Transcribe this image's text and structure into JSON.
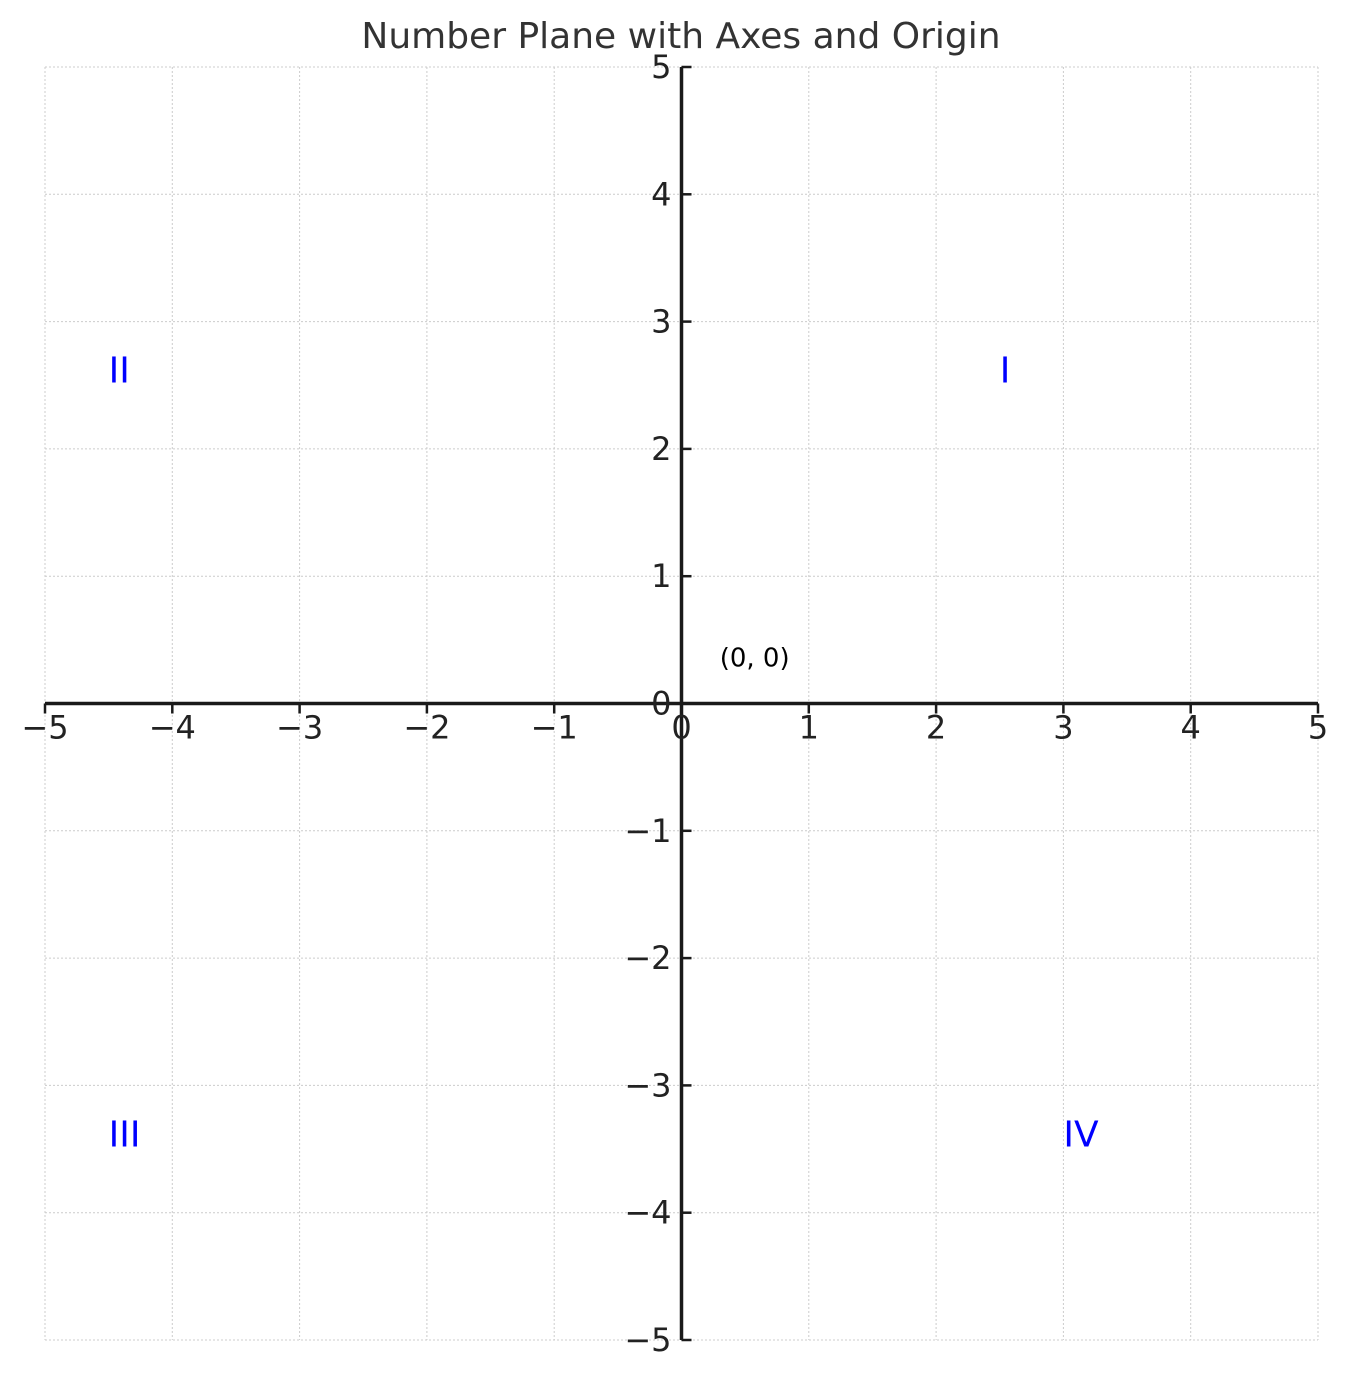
{
  "chart_data": {
    "type": "plane",
    "title": "Number Plane with Axes and Origin",
    "xlim": [
      -5,
      5
    ],
    "ylim": [
      -5,
      5
    ],
    "xticks": [
      {
        "value": -5,
        "label": "−5"
      },
      {
        "value": -4,
        "label": "−4"
      },
      {
        "value": -3,
        "label": "−3"
      },
      {
        "value": -2,
        "label": "−2"
      },
      {
        "value": -1,
        "label": "−1"
      },
      0,
      1,
      2,
      3,
      4,
      5
    ],
    "yticks": [
      {
        "value": -5,
        "label": "−5"
      },
      {
        "value": -4,
        "label": "−4"
      },
      {
        "value": -3,
        "label": "−3"
      },
      {
        "value": -2,
        "label": "−2"
      },
      {
        "value": -1,
        "label": "−1"
      },
      0,
      1,
      2,
      3,
      4,
      5
    ],
    "grid": true,
    "annotations": [
      {
        "text": "I",
        "x": 2.5,
        "y": 2.6,
        "color": "#0000ff"
      },
      {
        "text": "II",
        "x": -4.5,
        "y": 2.6,
        "color": "#0000ff"
      },
      {
        "text": "III",
        "x": -4.5,
        "y": -3.4,
        "color": "#0000ff"
      },
      {
        "text": "IV",
        "x": 3.0,
        "y": -3.4,
        "color": "#0000ff"
      },
      {
        "text": "(0, 0)",
        "x": 0.3,
        "y": 0.35,
        "color": "#000000"
      }
    ]
  }
}
